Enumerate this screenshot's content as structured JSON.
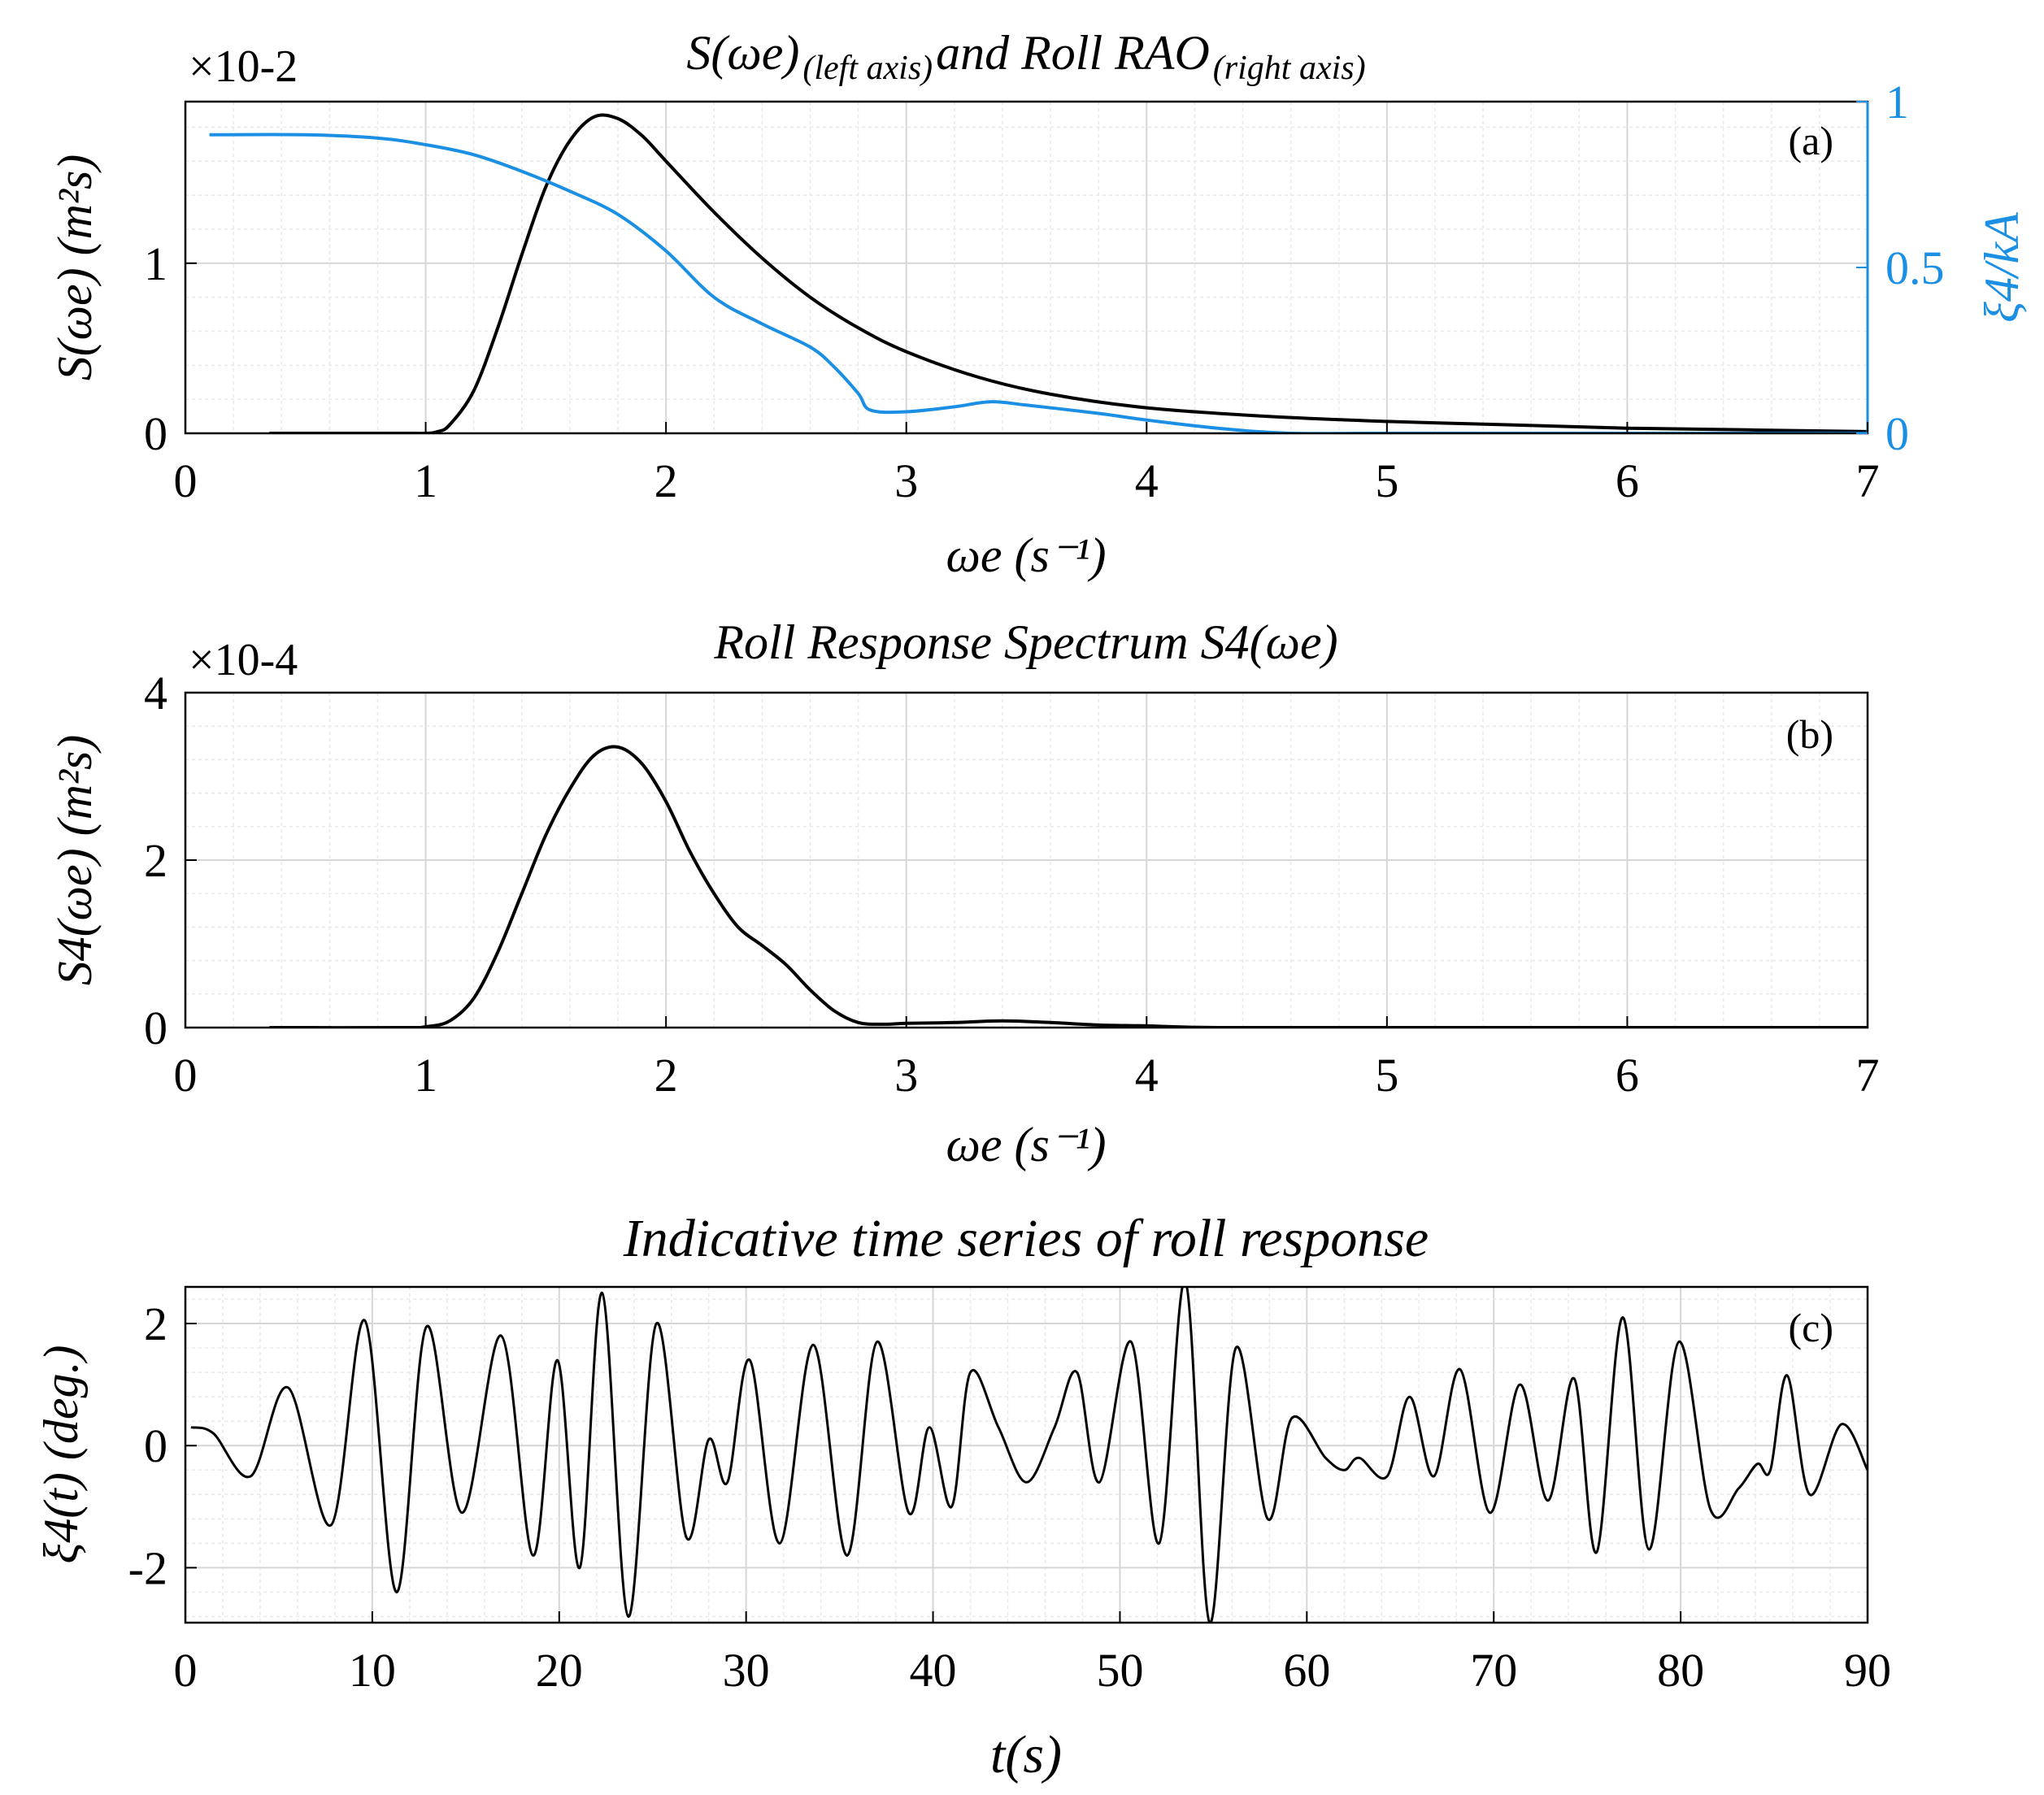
{
  "chart_data": [
    {
      "panel": "(a)",
      "type": "line",
      "title_main": "S(ωe)",
      "title_sub1": "(left axis)",
      "title_mid": "and Roll RAO",
      "title_sub2": "(right axis)",
      "xlabel": "ωe (s⁻¹)",
      "ylabel": "S(ωe) (m²s)",
      "ylabel_right": "ξ4/kA",
      "y_exponent": "×10-2",
      "xlim": [
        0,
        7
      ],
      "ylim": [
        0,
        1.95
      ],
      "ylim_right": [
        0,
        1
      ],
      "x_ticks": [
        "0",
        "1",
        "2",
        "3",
        "4",
        "5",
        "6",
        "7"
      ],
      "y_ticks": [
        "0",
        "1"
      ],
      "y_ticks_right": [
        "0",
        "0.5",
        "1"
      ],
      "grid": true,
      "series": [
        {
          "name": "S(ωe)",
          "axis": "left",
          "color": "#000000",
          "x": [
            0.35,
            0.9,
            1.0,
            1.05,
            1.1,
            1.2,
            1.3,
            1.4,
            1.5,
            1.6,
            1.7,
            1.8,
            1.9,
            2.0,
            2.2,
            2.4,
            2.6,
            2.8,
            3.0,
            3.3,
            3.6,
            4.0,
            4.5,
            5.0,
            5.5,
            6.0,
            6.5,
            7.0
          ],
          "values": [
            0,
            0,
            0,
            0.01,
            0.05,
            0.25,
            0.62,
            1.05,
            1.45,
            1.72,
            1.86,
            1.85,
            1.75,
            1.6,
            1.3,
            1.03,
            0.8,
            0.62,
            0.48,
            0.33,
            0.23,
            0.15,
            0.1,
            0.07,
            0.05,
            0.03,
            0.02,
            0.01
          ]
        },
        {
          "name": "Roll RAO",
          "axis": "right",
          "color": "#1a8fe3",
          "x": [
            0.1,
            0.5,
            0.8,
            1.0,
            1.2,
            1.4,
            1.6,
            1.8,
            2.0,
            2.2,
            2.4,
            2.6,
            2.7,
            2.8,
            2.85,
            3.0,
            3.2,
            3.35,
            3.5,
            3.8,
            4.0,
            4.3,
            4.6,
            5.0,
            6.0,
            7.0
          ],
          "values": [
            0.9,
            0.9,
            0.89,
            0.87,
            0.84,
            0.79,
            0.73,
            0.66,
            0.55,
            0.41,
            0.33,
            0.26,
            0.2,
            0.12,
            0.07,
            0.065,
            0.08,
            0.095,
            0.085,
            0.06,
            0.04,
            0.015,
            0.0,
            0.0,
            0.0,
            0.0
          ]
        }
      ]
    },
    {
      "panel": "(b)",
      "type": "line",
      "title": "Roll Response Spectrum S4(ωe)",
      "xlabel": "ωe (s⁻¹)",
      "ylabel": "S4(ωe) (m²s)",
      "y_exponent": "×10-4",
      "xlim": [
        0,
        7
      ],
      "ylim": [
        0,
        4
      ],
      "x_ticks": [
        "0",
        "1",
        "2",
        "3",
        "4",
        "5",
        "6",
        "7"
      ],
      "y_ticks": [
        "0",
        "2",
        "4"
      ],
      "grid": true,
      "series": [
        {
          "name": "S4(ωe)",
          "color": "#000000",
          "x": [
            0.35,
            0.9,
            1.0,
            1.1,
            1.2,
            1.3,
            1.4,
            1.5,
            1.6,
            1.7,
            1.8,
            1.9,
            2.0,
            2.1,
            2.2,
            2.3,
            2.4,
            2.5,
            2.6,
            2.7,
            2.8,
            2.9,
            3.0,
            3.2,
            3.4,
            3.6,
            3.8,
            4.0,
            4.3,
            5.0,
            6.0,
            7.0
          ],
          "values": [
            0,
            0,
            0.01,
            0.08,
            0.35,
            0.9,
            1.6,
            2.3,
            2.85,
            3.25,
            3.35,
            3.15,
            2.7,
            2.1,
            1.6,
            1.2,
            0.98,
            0.75,
            0.45,
            0.2,
            0.06,
            0.04,
            0.05,
            0.06,
            0.08,
            0.06,
            0.03,
            0.02,
            0.0,
            0.0,
            0.0,
            0.0
          ]
        }
      ]
    },
    {
      "panel": "(c)",
      "type": "line",
      "title": "Indicative time series of roll response",
      "xlabel": "t(s)",
      "ylabel": "ξ4(t) (deg.)",
      "xlim": [
        0,
        90
      ],
      "ylim": [
        -2.9,
        2.6
      ],
      "x_ticks": [
        "0",
        "10",
        "20",
        "30",
        "40",
        "50",
        "60",
        "70",
        "80",
        "90"
      ],
      "y_ticks": [
        "-2",
        "0",
        "2"
      ],
      "grid": true,
      "series": [
        {
          "name": "ξ4(t)",
          "color": "#000000",
          "peaks_t": [
            0.3,
            1.5,
            3.5,
            5.5,
            7.8,
            9.6,
            11.3,
            12.9,
            14.8,
            16.9,
            18.6,
            19.9,
            21.1,
            22.3,
            23.7,
            25.2,
            26.8,
            28.0,
            29.0,
            30.2,
            31.8,
            33.6,
            35.4,
            37.0,
            38.7,
            39.8,
            41.0,
            42.0,
            43.5,
            45.0,
            46.5,
            47.7,
            48.9,
            50.6,
            52.1,
            53.5,
            54.8,
            56.2,
            57.9,
            59.2,
            61.0,
            62.0,
            62.8,
            64.3,
            65.5,
            66.8,
            68.2,
            69.8,
            71.4,
            72.9,
            74.3,
            75.5,
            76.9,
            78.3,
            79.9,
            81.6,
            83.1,
            84.1,
            84.8,
            85.7,
            86.9,
            88.6,
            90.0
          ],
          "peaks_v": [
            0.3,
            0.2,
            -0.5,
            0.95,
            -1.3,
            2.05,
            -2.4,
            1.95,
            -1.1,
            1.8,
            -1.8,
            1.4,
            -2.0,
            2.5,
            -2.8,
            2.0,
            -1.5,
            0.1,
            -0.6,
            1.4,
            -1.6,
            1.65,
            -1.8,
            1.7,
            -1.1,
            0.3,
            -1.0,
            1.2,
            0.3,
            -0.6,
            0.3,
            1.2,
            -0.6,
            1.7,
            -1.6,
            2.7,
            -2.9,
            1.6,
            -1.2,
            0.45,
            -0.2,
            -0.4,
            -0.2,
            -0.5,
            0.8,
            -0.5,
            1.25,
            -1.1,
            1.0,
            -0.9,
            1.1,
            -1.75,
            2.1,
            -1.7,
            1.7,
            -1.05,
            -0.7,
            -0.3,
            -0.4,
            1.15,
            -0.8,
            0.35,
            -0.4
          ]
        }
      ]
    }
  ]
}
